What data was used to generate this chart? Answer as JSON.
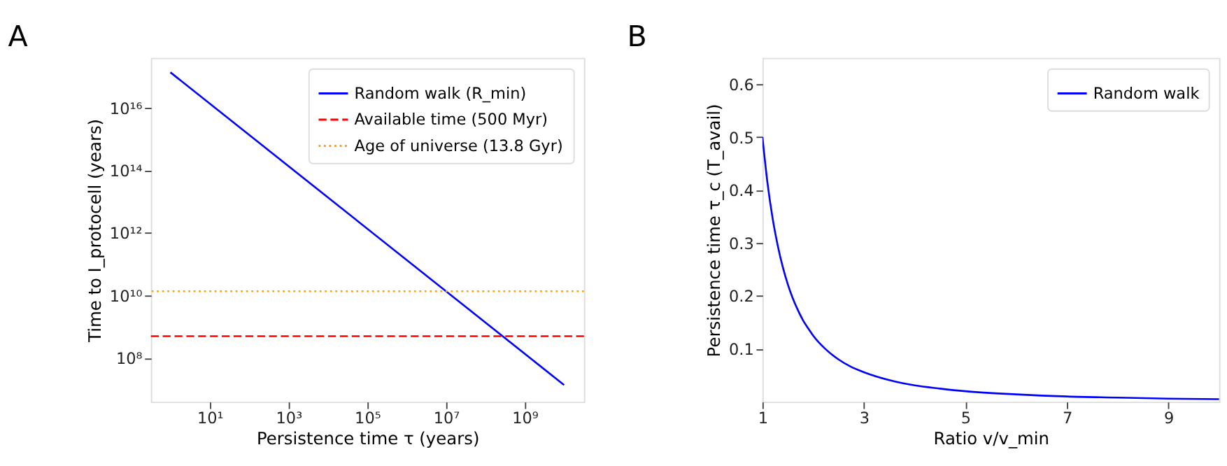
{
  "chart_data": [
    {
      "type": "line",
      "title": "A",
      "xlabel": "Persistence time τ (years)",
      "ylabel": "Time to I_protocell (years)",
      "log": "xy",
      "grid": false,
      "legend": "top right",
      "line_style": "solid",
      "marker": "none",
      "xlim": [
        0.32,
        32000000000.0
      ],
      "ylim": [
        4000000.0,
        4e+17
      ],
      "xticks": [
        {
          "value": 10,
          "label": "10¹"
        },
        {
          "value": 1000,
          "label": "10³"
        },
        {
          "value": 100000,
          "label": "10⁵"
        },
        {
          "value": 10000000,
          "label": "10⁷"
        },
        {
          "value": 1000000000,
          "label": "10⁹"
        }
      ],
      "yticks": [
        {
          "value": 100000000.0,
          "label": "10⁸"
        },
        {
          "value": 10000000000.0,
          "label": "10¹⁰"
        },
        {
          "value": 1000000000000.0,
          "label": "10¹²"
        },
        {
          "value": 100000000000000.0,
          "label": "10¹⁴"
        },
        {
          "value": 1e+16,
          "label": "10¹⁶"
        }
      ],
      "series": [
        {
          "name": "Random walk (R_min)",
          "color": "#0000ff",
          "x": [
            1,
            10000000000.0
          ],
          "values": [
            1.38e+17,
            13800000.0
          ]
        }
      ],
      "ref_lines": [
        {
          "axis": "y",
          "value": 500000000.0,
          "label": "Available time (500 Myr)",
          "color": "#ff0000",
          "line_style": "dashed"
        },
        {
          "axis": "y",
          "value": 13800000000.0,
          "label": "Age of universe (13.8 Gyr)",
          "color": "#ffa500",
          "line_style": "dotted"
        }
      ]
    },
    {
      "type": "line",
      "title": "B",
      "xlabel": "Ratio v/v_min",
      "ylabel": "Persistence time τ_c (T_avail)",
      "grid": false,
      "legend": "top right",
      "line_style": "solid",
      "marker": "none",
      "xlim": [
        1,
        10
      ],
      "ylim": [
        0,
        0.65
      ],
      "xticks": [
        1,
        3,
        5,
        7,
        9
      ],
      "yticks": [
        0.1,
        0.2,
        0.3,
        0.4,
        0.5,
        0.6
      ],
      "series": [
        {
          "name": "Random walk",
          "color": "#0000ff",
          "x": [
            1,
            1.1,
            1.2,
            1.3,
            1.4,
            1.5,
            1.6,
            1.7,
            1.8,
            1.9,
            2,
            2.25,
            2.5,
            2.75,
            3,
            3.5,
            4,
            4.5,
            5,
            6,
            7,
            8,
            9,
            10
          ],
          "values": [
            0.5,
            0.413,
            0.347,
            0.296,
            0.255,
            0.222,
            0.195,
            0.173,
            0.154,
            0.139,
            0.125,
            0.099,
            0.08,
            0.066,
            0.056,
            0.041,
            0.031,
            0.025,
            0.02,
            0.014,
            0.01,
            0.008,
            0.006,
            0.005
          ]
        }
      ]
    }
  ]
}
